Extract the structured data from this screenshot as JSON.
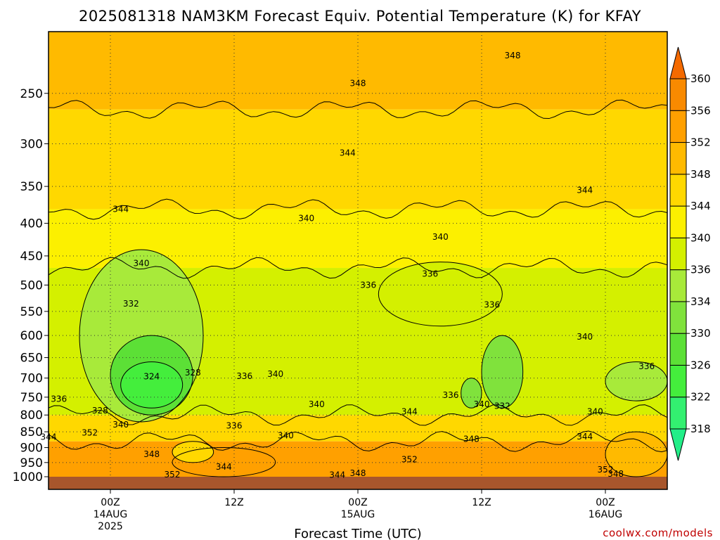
{
  "chart_data": {
    "type": "heatmap",
    "title": "2025081318 NAM3KM Forecast Equiv. Potential Temperature (K) for KFAY",
    "xlabel": "Forecast Time (UTC)",
    "ylabel": "",
    "variable": "Equivalent potential temperature (K)",
    "x_range": [
      "2025-08-13 18Z",
      "2025-08-16 06Z"
    ],
    "x_ticks": [
      {
        "time": "2025-08-14 00Z",
        "label": "00Z",
        "sub1": "14AUG",
        "sub2": "2025"
      },
      {
        "time": "2025-08-14 12Z",
        "label": "12Z",
        "sub1": "",
        "sub2": ""
      },
      {
        "time": "2025-08-15 00Z",
        "label": "00Z",
        "sub1": "15AUG",
        "sub2": ""
      },
      {
        "time": "2025-08-15 12Z",
        "label": "12Z",
        "sub1": "",
        "sub2": ""
      },
      {
        "time": "2025-08-16 00Z",
        "label": "00Z",
        "sub1": "16AUG",
        "sub2": ""
      }
    ],
    "y_axis": {
      "scale": "log",
      "unit": "hPa",
      "inverted": true,
      "range": [
        1000,
        200
      ],
      "ticks": [
        250,
        300,
        350,
        400,
        450,
        500,
        550,
        600,
        650,
        700,
        750,
        800,
        850,
        900,
        950,
        1000
      ]
    },
    "colorbar": {
      "levels": [
        318,
        322,
        326,
        330,
        334,
        336,
        340,
        344,
        348,
        352,
        356,
        360
      ],
      "labels": [
        "318",
        "322",
        "326",
        "330",
        "334",
        "336",
        "340",
        "344",
        "348",
        "352",
        "356",
        "360"
      ],
      "colors": [
        "#22ee88",
        "#33f070",
        "#44ee3c",
        "#5ce036",
        "#80e23c",
        "#a8ea3a",
        "#d4f000",
        "#fcf000",
        "#ffd800",
        "#ffba00",
        "#ffa000",
        "#f98a00",
        "#f46a00"
      ],
      "extend": "both"
    },
    "grid": true,
    "layers": [
      {
        "name": "upper",
        "top_p": 200,
        "bottom_p": 265,
        "value": 351
      },
      {
        "name": "band",
        "top_p": 265,
        "bottom_p": 380,
        "value": 347
      },
      {
        "name": "mid",
        "top_p": 380,
        "bottom_p": 470,
        "value": 341
      },
      {
        "name": "lower-mid",
        "top_p": 470,
        "bottom_p": 800,
        "value": 338
      },
      {
        "name": "boundary",
        "top_p": 800,
        "bottom_p": 880,
        "value": 346
      },
      {
        "name": "near-surface",
        "top_p": 880,
        "bottom_p": 1000,
        "value": 352
      }
    ],
    "regions": [
      {
        "t0": "2025-08-13 21Z",
        "t1": "2025-08-14 09Z",
        "p0": 440,
        "p1": 820,
        "value": 334
      },
      {
        "t0": "2025-08-14 00Z",
        "t1": "2025-08-14 08Z",
        "p0": 600,
        "p1": 800,
        "value": 328
      },
      {
        "t0": "2025-08-14 01Z",
        "t1": "2025-08-14 07Z",
        "p0": 660,
        "p1": 780,
        "value": 324
      },
      {
        "t0": "2025-08-15 02Z",
        "t1": "2025-08-15 14Z",
        "p0": 460,
        "p1": 580,
        "value": 336
      },
      {
        "t0": "2025-08-15 12Z",
        "t1": "2025-08-15 16Z",
        "p0": 600,
        "p1": 780,
        "value": 332
      },
      {
        "t0": "2025-08-15 10Z",
        "t1": "2025-08-15 12Z",
        "p0": 700,
        "p1": 780,
        "value": 330
      },
      {
        "t0": "2025-08-16 00Z",
        "t1": "2025-08-16 06Z",
        "p0": 660,
        "p1": 760,
        "value": 334
      },
      {
        "t0": "2025-08-16 00Z",
        "t1": "2025-08-16 06Z",
        "p0": 850,
        "p1": 1000,
        "value": 350
      },
      {
        "t0": "2025-08-14 06Z",
        "t1": "2025-08-14 16Z",
        "p0": 900,
        "p1": 1000,
        "value": 354
      },
      {
        "t0": "2025-08-14 06Z",
        "t1": "2025-08-14 10Z",
        "p0": 880,
        "p1": 950,
        "value": 346
      }
    ],
    "contour_labels": [
      {
        "time": "2025-08-15 15Z",
        "p": 218,
        "text": "348"
      },
      {
        "time": "2025-08-15 00Z",
        "p": 241,
        "text": "348"
      },
      {
        "time": "2025-08-14 23Z",
        "p": 310,
        "text": "344"
      },
      {
        "time": "2025-08-15 22Z",
        "p": 355,
        "text": "344"
      },
      {
        "time": "2025-08-14 01Z",
        "p": 380,
        "text": "344"
      },
      {
        "time": "2025-08-14 19Z",
        "p": 393,
        "text": "340"
      },
      {
        "time": "2025-08-15 08Z",
        "p": 420,
        "text": "340"
      },
      {
        "time": "2025-08-14 03Z",
        "p": 462,
        "text": "340"
      },
      {
        "time": "2025-08-15 07Z",
        "p": 480,
        "text": "336"
      },
      {
        "time": "2025-08-15 01Z",
        "p": 500,
        "text": "336"
      },
      {
        "time": "2025-08-15 13Z",
        "p": 537,
        "text": "336"
      },
      {
        "time": "2025-08-15 22Z",
        "p": 603,
        "text": "340"
      },
      {
        "time": "2025-08-14 02Z",
        "p": 535,
        "text": "332"
      },
      {
        "time": "2025-08-16 04Z",
        "p": 671,
        "text": "336"
      },
      {
        "time": "2025-08-14 04Z",
        "p": 696,
        "text": "324"
      },
      {
        "time": "2025-08-14 08Z",
        "p": 686,
        "text": "328"
      },
      {
        "time": "2025-08-14 13Z",
        "p": 695,
        "text": "336"
      },
      {
        "time": "2025-08-14 16Z",
        "p": 690,
        "text": "340"
      },
      {
        "time": "2025-08-13 19Z",
        "p": 755,
        "text": "336"
      },
      {
        "time": "2025-08-15 09Z",
        "p": 745,
        "text": "336"
      },
      {
        "time": "2025-08-14 20Z",
        "p": 770,
        "text": "340"
      },
      {
        "time": "2025-08-15 12Z",
        "p": 770,
        "text": "340"
      },
      {
        "time": "2025-08-15 14Z",
        "p": 775,
        "text": "332"
      },
      {
        "time": "2025-08-13 23Z",
        "p": 787,
        "text": "328"
      },
      {
        "time": "2025-08-15 05Z",
        "p": 790,
        "text": "344"
      },
      {
        "time": "2025-08-15 23Z",
        "p": 790,
        "text": "340"
      },
      {
        "time": "2025-08-14 01Z",
        "p": 828,
        "text": "340"
      },
      {
        "time": "2025-08-14 12Z",
        "p": 832,
        "text": "336"
      },
      {
        "time": "2025-08-13 22Z",
        "p": 853,
        "text": "352"
      },
      {
        "time": "2025-08-14 17Z",
        "p": 862,
        "text": "340"
      },
      {
        "time": "2025-08-13 18Z",
        "p": 866,
        "text": "344"
      },
      {
        "time": "2025-08-15 11Z",
        "p": 873,
        "text": "348"
      },
      {
        "time": "2025-08-15 22Z",
        "p": 865,
        "text": "344"
      },
      {
        "time": "2025-08-14 04Z",
        "p": 922,
        "text": "348"
      },
      {
        "time": "2025-08-15 05Z",
        "p": 940,
        "text": "352"
      },
      {
        "time": "2025-08-14 11Z",
        "p": 965,
        "text": "344"
      },
      {
        "time": "2025-08-16 00Z",
        "p": 975,
        "text": "352"
      },
      {
        "time": "2025-08-14 06Z",
        "p": 992,
        "text": "352"
      },
      {
        "time": "2025-08-14 22Z",
        "p": 994,
        "text": "344"
      },
      {
        "time": "2025-08-15 00Z",
        "p": 987,
        "text": "348"
      },
      {
        "time": "2025-08-16 01Z",
        "p": 990,
        "text": "348"
      }
    ]
  },
  "credit": "coolwx.com/models"
}
